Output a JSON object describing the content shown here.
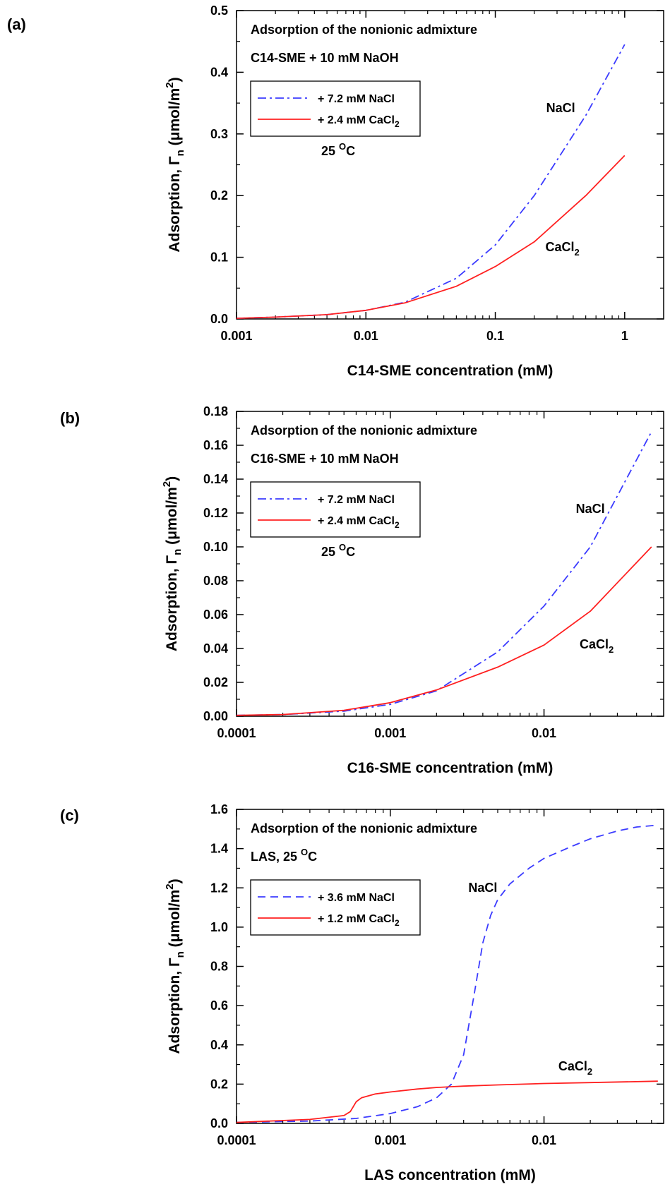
{
  "chart_data": [
    {
      "type": "line",
      "panel_label": "(a)",
      "xscale": "log",
      "xlim": [
        0.001,
        2
      ],
      "ylim": [
        0,
        0.5
      ],
      "xticks": [
        0.001,
        0.01,
        0.1,
        1
      ],
      "xtick_labels": [
        "0.001",
        "0.01",
        "0.1",
        "1"
      ],
      "yticks": [
        0,
        0.1,
        0.2,
        0.3,
        0.4,
        0.5
      ],
      "ytick_labels": [
        "0.0",
        "0.1",
        "0.2",
        "0.3",
        "0.4",
        "0.5"
      ],
      "xlabel": "C14-SME concentration (mM)",
      "ylabel_main": "Adsorption, Γ",
      "ylabel_sub": "n",
      "ylabel_units": " (μmol/m",
      "ylabel_sup": "2",
      "ylabel_close": ")",
      "annotations": {
        "line1": "Adsorption of the nonionic admixture",
        "line2": "C14-SME + 10 mM NaOH",
        "temp_main": "25 ",
        "temp_sup": "O",
        "temp_unit": "C",
        "nacl_label": "NaCl",
        "cacl_label_main": "CaCl",
        "cacl_label_sub": "2"
      },
      "legend": {
        "placement": "upper-left",
        "entries": [
          {
            "label_main": "+ 7.2 mM NaCl",
            "label_sub": ""
          },
          {
            "label_main": "+ 2.4 mM CaCl",
            "label_sub": "2"
          }
        ]
      },
      "grid": false,
      "series": [
        {
          "color": "#3b3bff",
          "dash": "12,5,3,5",
          "x": [
            0.001,
            0.002,
            0.005,
            0.01,
            0.02,
            0.05,
            0.1,
            0.2,
            0.5,
            1.0
          ],
          "y": [
            0.001,
            0.003,
            0.007,
            0.014,
            0.027,
            0.066,
            0.12,
            0.2,
            0.33,
            0.445
          ]
        },
        {
          "color": "#ff2020",
          "dash": "",
          "x": [
            0.001,
            0.002,
            0.005,
            0.01,
            0.02,
            0.05,
            0.1,
            0.2,
            0.5,
            1.0
          ],
          "y": [
            0.001,
            0.003,
            0.007,
            0.014,
            0.026,
            0.053,
            0.085,
            0.125,
            0.2,
            0.265
          ]
        }
      ]
    },
    {
      "type": "line",
      "panel_label": "(b)",
      "xscale": "log",
      "xlim": [
        0.0001,
        0.06
      ],
      "ylim": [
        0,
        0.18
      ],
      "xticks": [
        0.0001,
        0.001,
        0.01
      ],
      "xtick_labels": [
        "0.0001",
        "0.001",
        "0.01"
      ],
      "yticks": [
        0,
        0.02,
        0.04,
        0.06,
        0.08,
        0.1,
        0.12,
        0.14,
        0.16,
        0.18
      ],
      "ytick_labels": [
        "0.00",
        "0.02",
        "0.04",
        "0.06",
        "0.08",
        "0.10",
        "0.12",
        "0.14",
        "0.16",
        "0.18"
      ],
      "xlabel": "C16-SME concentration (mM)",
      "ylabel_main": "Adsorption, Γ",
      "ylabel_sub": "n",
      "ylabel_units": " (μmol/m",
      "ylabel_sup": "2",
      "ylabel_close": ")",
      "annotations": {
        "line1": "Adsorption of the nonionic admixture",
        "line2": "C16-SME + 10 mM NaOH",
        "temp_main": "25 ",
        "temp_sup": "O",
        "temp_unit": "C",
        "nacl_label": "NaCl",
        "cacl_label_main": "CaCl",
        "cacl_label_sub": "2"
      },
      "legend": {
        "placement": "upper-left",
        "entries": [
          {
            "label_main": "+ 7.2 mM NaCl",
            "label_sub": ""
          },
          {
            "label_main": "+ 2.4 mM CaCl",
            "label_sub": "2"
          }
        ]
      },
      "grid": false,
      "series": [
        {
          "color": "#3b3bff",
          "dash": "12,5,3,5",
          "x": [
            0.0001,
            0.0002,
            0.0005,
            0.001,
            0.002,
            0.005,
            0.01,
            0.02,
            0.05
          ],
          "y": [
            0.0005,
            0.001,
            0.003,
            0.007,
            0.015,
            0.038,
            0.065,
            0.1,
            0.168
          ]
        },
        {
          "color": "#ff2020",
          "dash": "",
          "x": [
            0.0001,
            0.0002,
            0.0005,
            0.001,
            0.002,
            0.005,
            0.01,
            0.02,
            0.05
          ],
          "y": [
            0.0005,
            0.001,
            0.0035,
            0.008,
            0.0155,
            0.029,
            0.042,
            0.062,
            0.1
          ]
        }
      ]
    },
    {
      "type": "line",
      "panel_label": "(c)",
      "xscale": "log",
      "xlim": [
        0.0001,
        0.06
      ],
      "ylim": [
        0,
        1.6
      ],
      "xticks": [
        0.0001,
        0.001,
        0.01
      ],
      "xtick_labels": [
        "0.0001",
        "0.001",
        "0.01"
      ],
      "yticks": [
        0,
        0.2,
        0.4,
        0.6,
        0.8,
        1.0,
        1.2,
        1.4,
        1.6
      ],
      "ytick_labels": [
        "0.0",
        "0.2",
        "0.4",
        "0.6",
        "0.8",
        "1.0",
        "1.2",
        "1.4",
        "1.6"
      ],
      "xlabel": "LAS concentration (mM)",
      "ylabel_main": "Adsorption, Γ",
      "ylabel_sub": "n",
      "ylabel_units": " (μmol/m",
      "ylabel_sup": "2",
      "ylabel_close": ")",
      "annotations": {
        "line1": "Adsorption of the nonionic admixture",
        "line2_main": "LAS, 25 ",
        "line2_sup": "O",
        "line2_unit": "C",
        "nacl_label": "NaCl",
        "cacl_label_main": "CaCl",
        "cacl_label_sub": "2"
      },
      "legend": {
        "placement": "upper-left",
        "entries": [
          {
            "label_main": "+ 3.6 mM NaCl",
            "label_sub": ""
          },
          {
            "label_main": "+ 1.2 mM CaCl",
            "label_sub": "2"
          }
        ]
      },
      "grid": false,
      "series": [
        {
          "color": "#3b3bff",
          "dash": "11,7",
          "x": [
            0.0001,
            0.0003,
            0.0006,
            0.001,
            0.0015,
            0.002,
            0.0025,
            0.003,
            0.0035,
            0.004,
            0.0045,
            0.005,
            0.006,
            0.008,
            0.01,
            0.015,
            0.02,
            0.03,
            0.04,
            0.055
          ],
          "y": [
            0.005,
            0.012,
            0.025,
            0.05,
            0.085,
            0.13,
            0.2,
            0.35,
            0.65,
            0.92,
            1.06,
            1.14,
            1.22,
            1.3,
            1.35,
            1.41,
            1.45,
            1.49,
            1.51,
            1.52
          ]
        },
        {
          "color": "#ff2020",
          "dash": "",
          "x": [
            0.0001,
            0.0003,
            0.0005,
            0.00055,
            0.0006,
            0.00065,
            0.0008,
            0.001,
            0.0015,
            0.002,
            0.003,
            0.005,
            0.01,
            0.02,
            0.055
          ],
          "y": [
            0.005,
            0.02,
            0.04,
            0.06,
            0.11,
            0.13,
            0.15,
            0.16,
            0.175,
            0.183,
            0.19,
            0.196,
            0.203,
            0.208,
            0.215
          ]
        }
      ]
    }
  ]
}
